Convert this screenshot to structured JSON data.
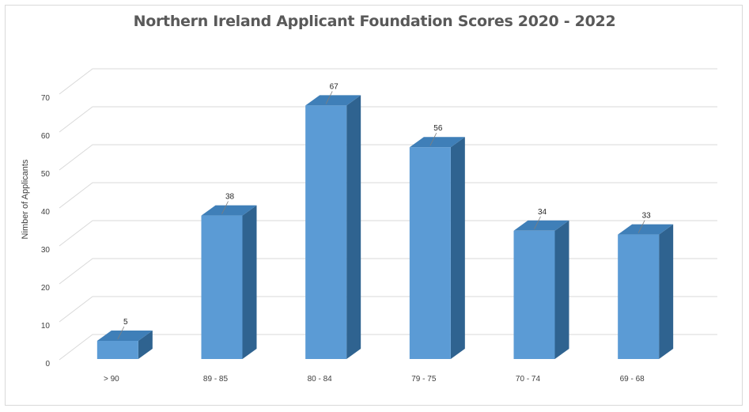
{
  "chart_data": {
    "type": "bar",
    "title": "Northern Ireland Applicant Foundation Scores 2020 - 2022",
    "xlabel": "",
    "ylabel": "Nimber of Applicants",
    "categories": [
      "> 90",
      "89 - 85",
      "80 - 84",
      "79 - 75",
      "70 - 74",
      "69 - 68"
    ],
    "values": [
      5,
      38,
      67,
      56,
      34,
      33
    ],
    "ylim": [
      0,
      70
    ],
    "yticks": [
      0,
      10,
      20,
      30,
      40,
      50,
      60,
      70
    ],
    "grid": true,
    "data_labels": true,
    "style": "3d-column",
    "colors": {
      "bar_front": "#5b9bd5",
      "bar_top": "#3f7fb8",
      "bar_side": "#2f6390",
      "gridline": "#d9d9d9",
      "title": "#595959"
    }
  }
}
